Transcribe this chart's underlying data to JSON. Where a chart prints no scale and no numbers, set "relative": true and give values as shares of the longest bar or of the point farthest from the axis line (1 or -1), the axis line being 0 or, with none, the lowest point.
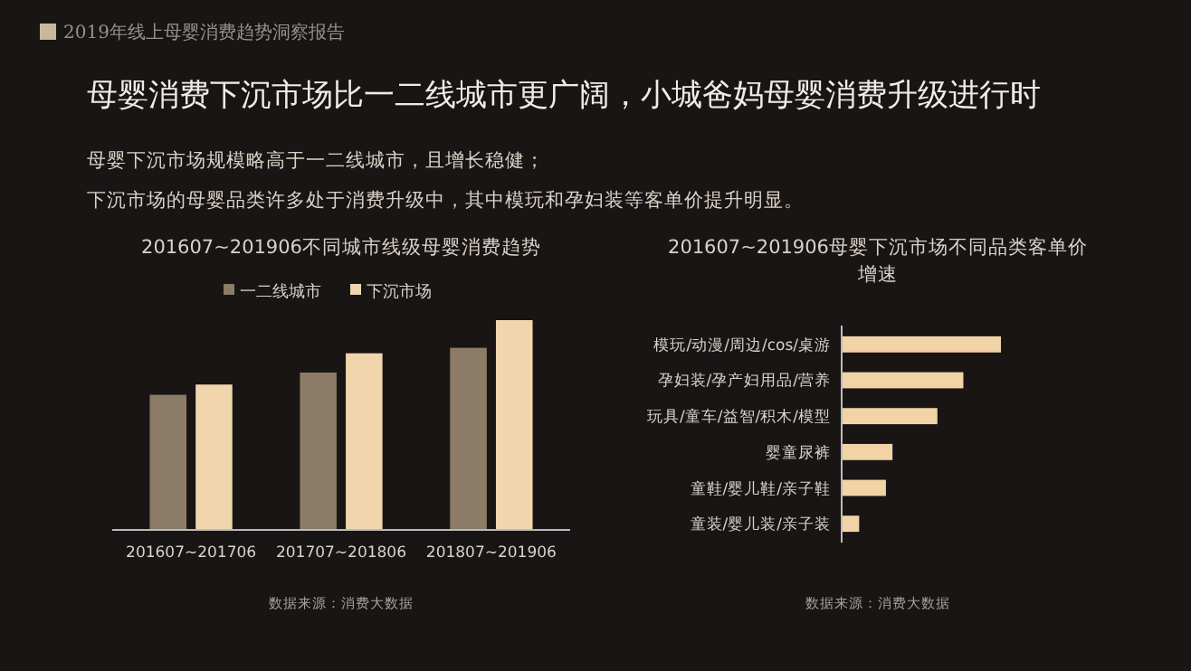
{
  "chart_data": [
    {
      "type": "other",
      "title": "母婴消费下沉市场比一二线城市更广阔，小城爸妈母婴消费升级进行时",
      "annotations": [
        "2019年线上母婴消费趋势洞察报告",
        "母婴下沉市场规模略高于一二线城市，且增长稳健；",
        "下沉市场的母婴品类许多处于消费升级中，其中模玩和孕妇装等客单价提升明显。"
      ]
    },
    {
      "type": "bar",
      "title": "201607~201906不同城市线级母婴消费趋势",
      "relative": true,
      "legend": "top",
      "categories": [
        "201607~201706",
        "201707~201806",
        "201807~201906"
      ],
      "series": [
        {
          "name": "一二线城市",
          "color": "#8c7b66",
          "values": [
            0.644,
            0.75,
            0.868
          ]
        },
        {
          "name": "下沉市场",
          "color": "#f1d6ad",
          "values": [
            0.693,
            0.842,
            1
          ]
        }
      ],
      "annotations": [
        "数据来源：消费大数据"
      ]
    },
    {
      "type": "bar",
      "orientation": "horizontal",
      "title": "201607~201906母婴下沉市场不同品类客单价增速",
      "relative": true,
      "categories": [
        "模玩/动漫/周边/cos/桌游",
        "孕妇装/孕产妇用品/营养",
        "玩具/童车/益智/积木/模型",
        "婴童尿裤",
        "童鞋/婴儿鞋/亲子鞋",
        "童装/婴儿装/亲子装"
      ],
      "values": [
        1,
        0.764,
        0.601,
        0.319,
        0.278,
        0.11
      ],
      "color": "#f1d3a6",
      "annotations": [
        "数据来源：消费大数据"
      ]
    }
  ]
}
